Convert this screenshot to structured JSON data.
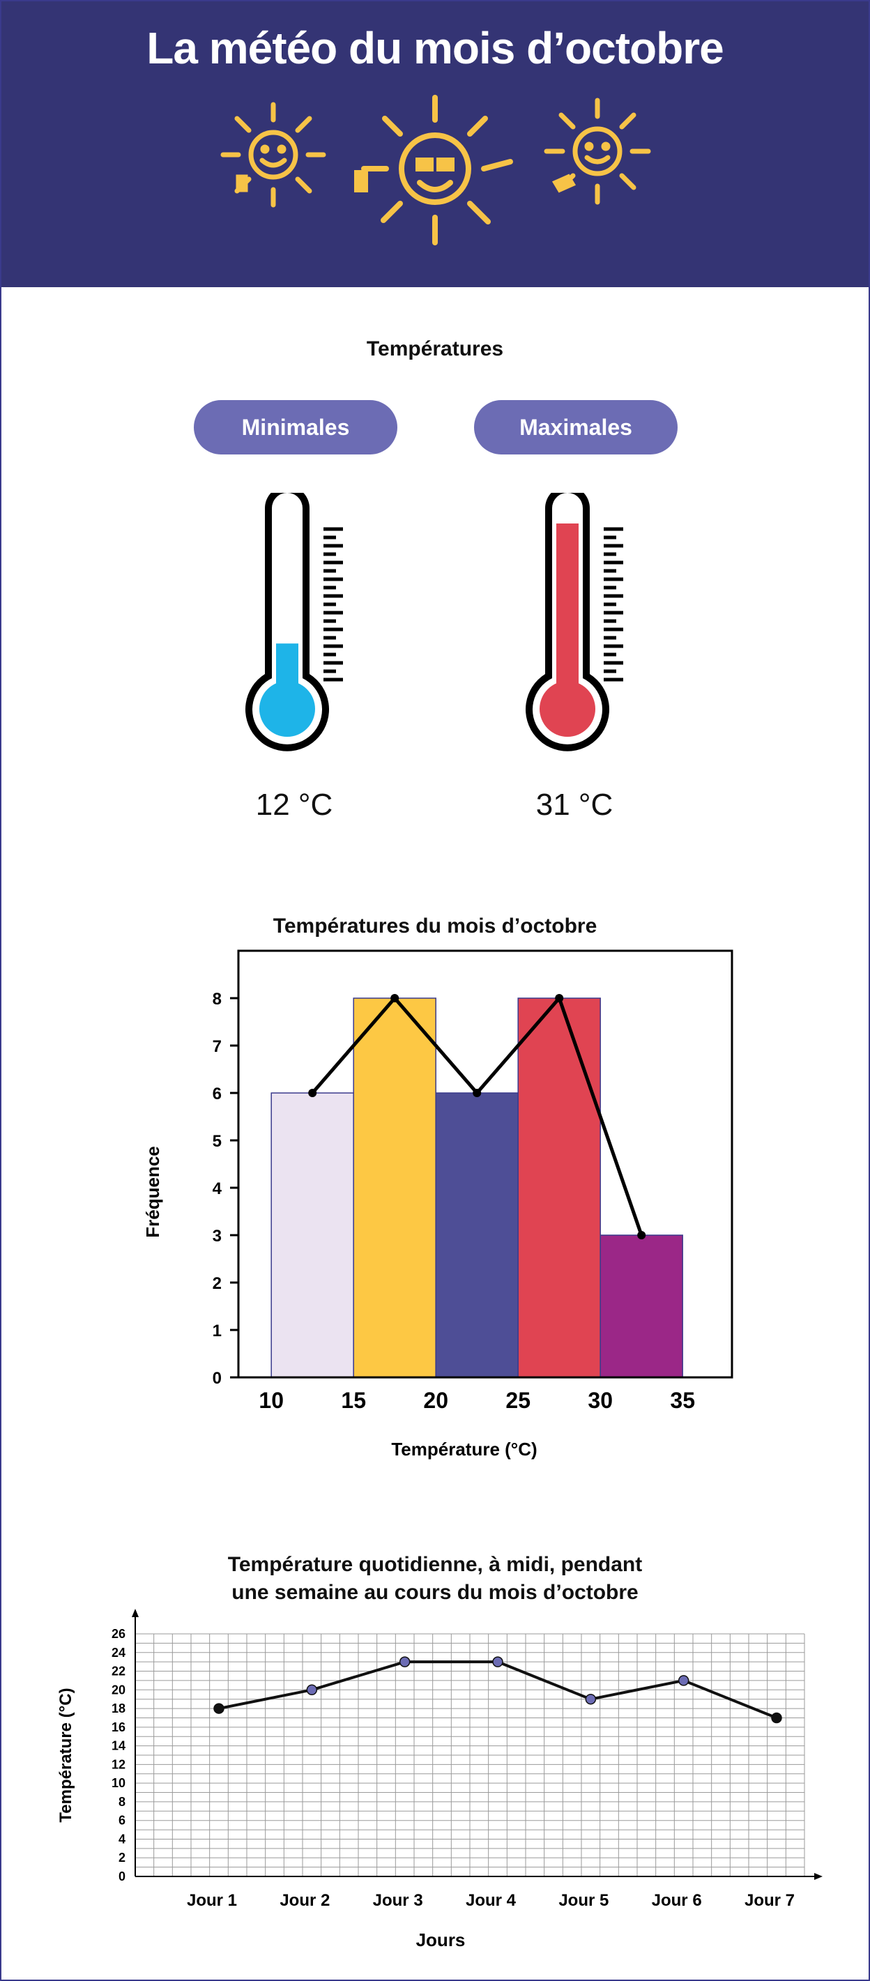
{
  "header": {
    "title": "La météo du mois d’octobre"
  },
  "temperatures": {
    "title": "Températures",
    "min_label": "Minimales",
    "max_label": "Maximales",
    "min_value": "12 °C",
    "max_value": "31 °C",
    "min_fill_fraction": 0.3,
    "max_fill_fraction": 1.0,
    "min_color": "#1eb4e8",
    "max_color": "#e04452"
  },
  "chart_data": [
    {
      "type": "bar",
      "title": "Températures du mois d’octobre",
      "xlabel": "Température (°C)",
      "ylabel": "Fréquence",
      "bins": [
        [
          10,
          15
        ],
        [
          15,
          20
        ],
        [
          20,
          25
        ],
        [
          25,
          30
        ],
        [
          30,
          35
        ]
      ],
      "values": [
        6,
        8,
        6,
        8,
        3
      ],
      "colors": [
        "#ebe3f1",
        "#fdc844",
        "#4e4e96",
        "#e04452",
        "#9b2787"
      ],
      "polygon": {
        "x": [
          12.5,
          17.5,
          22.5,
          27.5,
          32.5
        ],
        "y": [
          6,
          8,
          6,
          8,
          3
        ]
      },
      "xticks": [
        "10",
        "15",
        "20",
        "25",
        "30",
        "35"
      ],
      "yticks": [
        "0",
        "1",
        "2",
        "3",
        "4",
        "5",
        "6",
        "7",
        "8"
      ],
      "ylim": [
        0,
        9
      ],
      "xlim": [
        8,
        38
      ]
    },
    {
      "type": "line",
      "title_line1": "Température quotidienne, à midi, pendant",
      "title_line2": "une semaine au cours du mois d’octobre",
      "xlabel": "Jours",
      "ylabel": "Température (°C)",
      "categories": [
        "Jour 1",
        "Jour 2",
        "Jour 3",
        "Jour 4",
        "Jour 5",
        "Jour 6",
        "Jour 7"
      ],
      "values": [
        18,
        20,
        23,
        23,
        19,
        21,
        17
      ],
      "yticks": [
        "0",
        "2",
        "4",
        "6",
        "8",
        "10",
        "12",
        "14",
        "16",
        "18",
        "20",
        "22",
        "24",
        "26"
      ],
      "ylim": [
        0,
        26
      ],
      "grid": true
    }
  ]
}
